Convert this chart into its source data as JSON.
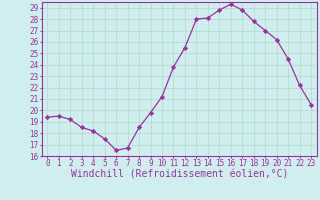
{
  "x": [
    0,
    1,
    2,
    3,
    4,
    5,
    6,
    7,
    8,
    9,
    10,
    11,
    12,
    13,
    14,
    15,
    16,
    17,
    18,
    19,
    20,
    21,
    22,
    23
  ],
  "y": [
    19.4,
    19.5,
    19.2,
    18.5,
    18.2,
    17.5,
    16.5,
    16.7,
    18.5,
    19.8,
    21.2,
    23.8,
    25.5,
    28.0,
    28.1,
    28.8,
    29.3,
    28.8,
    27.8,
    27.0,
    26.2,
    24.5,
    22.2,
    20.5
  ],
  "line_color": "#993399",
  "marker": "D",
  "marker_size": 2.2,
  "bg_color": "#d0eef0",
  "grid_color": "#b0d8c8",
  "xlabel": "Windchill (Refroidissement éolien,°C)",
  "ylim": [
    16,
    29.5
  ],
  "xlim": [
    -0.5,
    23.5
  ],
  "yticks": [
    16,
    17,
    18,
    19,
    20,
    21,
    22,
    23,
    24,
    25,
    26,
    27,
    28,
    29
  ],
  "xticks": [
    0,
    1,
    2,
    3,
    4,
    5,
    6,
    7,
    8,
    9,
    10,
    11,
    12,
    13,
    14,
    15,
    16,
    17,
    18,
    19,
    20,
    21,
    22,
    23
  ],
  "tick_label_fontsize": 5.5,
  "xlabel_fontsize": 7.0,
  "label_color": "#993399"
}
